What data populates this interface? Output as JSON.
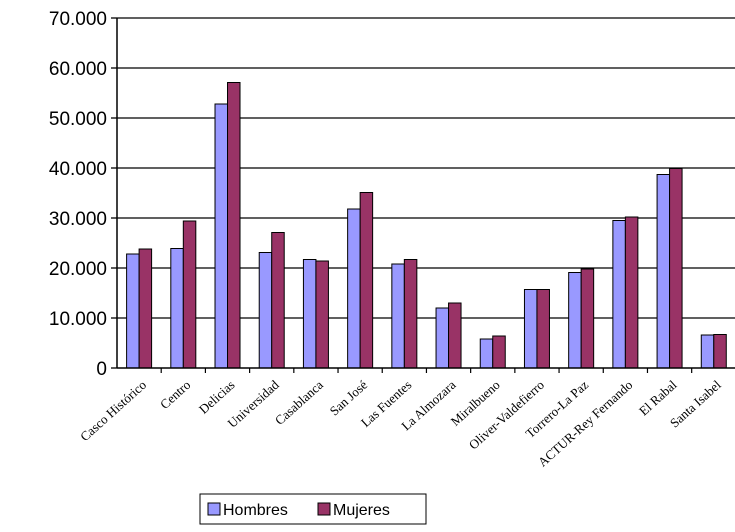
{
  "chart_data": {
    "type": "bar",
    "categories": [
      "Casco Histórico",
      "Centro",
      "Delicias",
      "Universidad",
      "Casablanca",
      "San José",
      "Las Fuentes",
      "La Almozara",
      "Miralbueno",
      "Oliver-Valdefierro",
      "Torrero-La Paz",
      "ACTUR-Rey Fernando",
      "El Rabal",
      "Santa Isabel"
    ],
    "series": [
      {
        "name": "Hombres",
        "color": "#9999ff",
        "values": [
          22800,
          23900,
          52800,
          23100,
          21700,
          31800,
          20800,
          12000,
          5800,
          15700,
          19100,
          29500,
          38700,
          6600
        ]
      },
      {
        "name": "Mujeres",
        "color": "#993366",
        "values": [
          23800,
          29400,
          57100,
          27100,
          21400,
          35100,
          21700,
          13000,
          6400,
          15700,
          19800,
          30200,
          39900,
          6700
        ]
      }
    ],
    "yticks": [
      "0",
      "10.000",
      "20.000",
      "30.000",
      "40.000",
      "50.000",
      "60.000",
      "70.000"
    ],
    "ylim": [
      0,
      70000
    ],
    "grid": true,
    "legend": "bottom-center"
  }
}
